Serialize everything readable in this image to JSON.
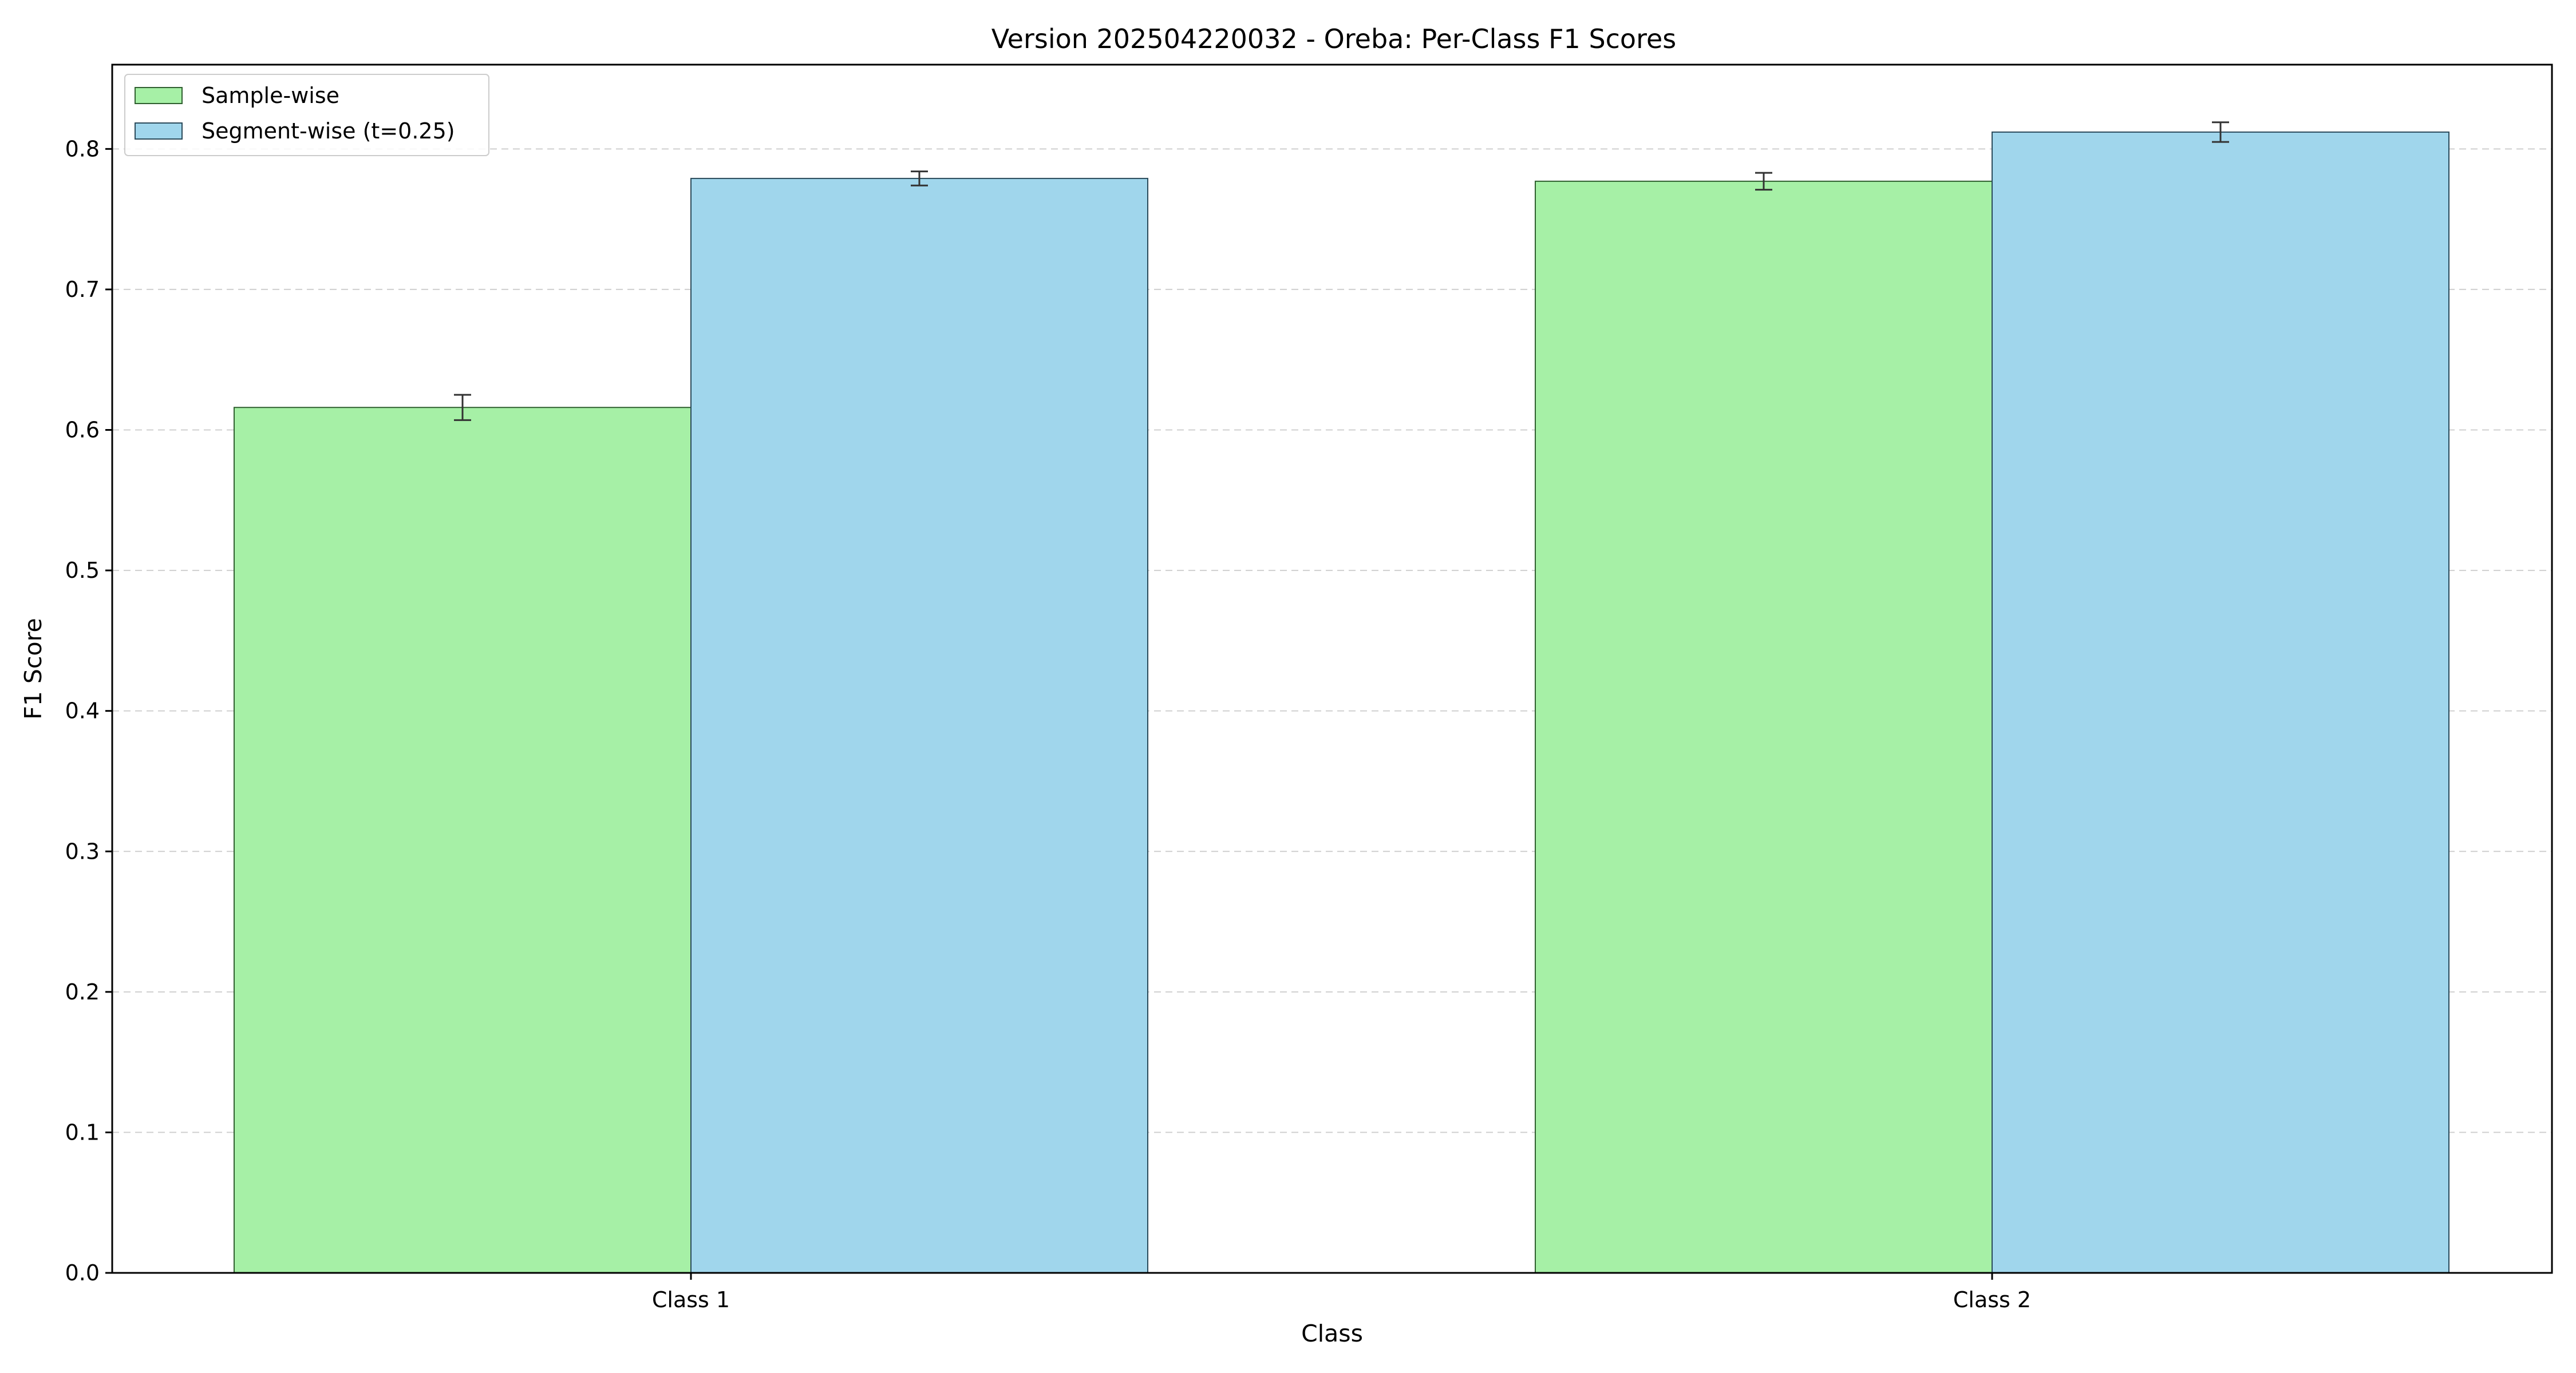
{
  "chart_data": {
    "type": "bar",
    "title": "Version 202504220032 - Oreba: Per-Class F1 Scores",
    "xlabel": "Class",
    "ylabel": "F1 Score",
    "categories": [
      "Class 1",
      "Class 2"
    ],
    "ylim": [
      0,
      0.86
    ],
    "yticks": [
      0.0,
      0.1,
      0.2,
      0.3,
      0.4,
      0.5,
      0.6,
      0.7,
      0.8
    ],
    "ytick_labels": [
      "0.0",
      "0.1",
      "0.2",
      "0.3",
      "0.4",
      "0.5",
      "0.6",
      "0.7",
      "0.8"
    ],
    "grid": "y-dashed",
    "legend_position": "top-left",
    "series": [
      {
        "name": "Sample-wise",
        "color": "#a6f0a6",
        "edge_color": "#2f5f2f",
        "values": [
          0.616,
          0.777
        ],
        "errors": [
          0.009,
          0.006
        ]
      },
      {
        "name": "Segment-wise (t=0.25)",
        "color": "#a0d6ec",
        "edge_color": "#2a4a5a",
        "values": [
          0.779,
          0.812
        ],
        "errors": [
          0.005,
          0.007
        ]
      }
    ]
  }
}
